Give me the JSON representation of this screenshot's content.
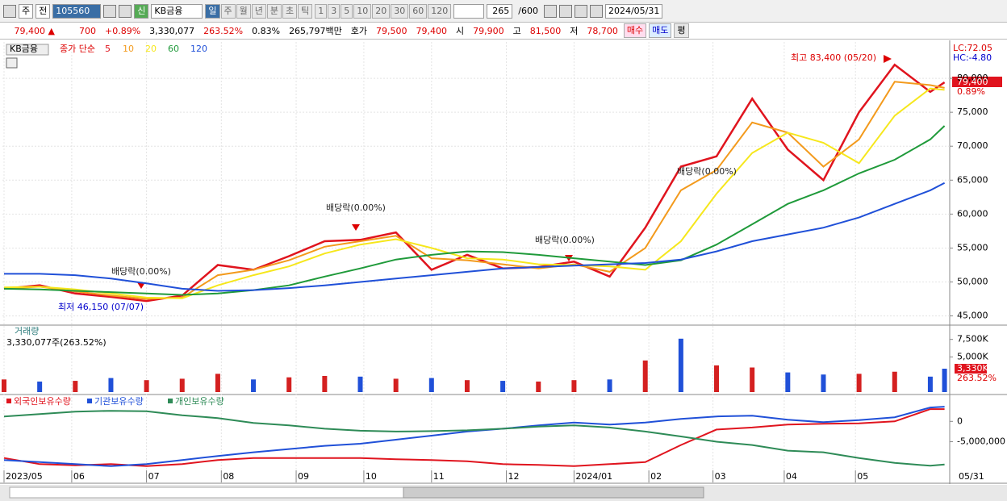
{
  "toolbar": {
    "market": "주",
    "prev": "전",
    "code": "105560",
    "badge": "신",
    "name": "KB금융",
    "periods": [
      "일",
      "주",
      "월",
      "년",
      "분",
      "초",
      "틱"
    ],
    "intervals": [
      "1",
      "3",
      "5",
      "10",
      "20",
      "30",
      "60",
      "120"
    ],
    "count": "265",
    "max": "/600",
    "date": "2024/05/31"
  },
  "quote": {
    "price": "79,400 ▲",
    "change": "700",
    "change_pct": "+0.89%",
    "volume": "3,330,077",
    "volume_ratio": "263.52%",
    "turnover": "0.83%",
    "amount": "265,797백만",
    "ask_label": "호가",
    "ask": "79,500",
    "bid": "79,400",
    "open_label": "시",
    "open": "79,900",
    "high_label": "고",
    "high": "81,500",
    "low_label": "저",
    "low": "78,700",
    "buy": "매수",
    "sell": "매도",
    "avg": "평"
  },
  "chart_data": [
    {
      "type": "line",
      "title": "KB금융",
      "subtitle": "종가 단순",
      "xlim": [
        0,
        265
      ],
      "ylim": [
        44000,
        85000
      ],
      "yticks": [
        {
          "value": 45000,
          "label": "45,000"
        },
        {
          "value": 50000,
          "label": "50,000"
        },
        {
          "value": 55000,
          "label": "55,000"
        },
        {
          "value": 60000,
          "label": "60,000"
        },
        {
          "value": 65000,
          "label": "65,000"
        },
        {
          "value": 70000,
          "label": "70,000"
        },
        {
          "value": 75000,
          "label": "75,000"
        },
        {
          "value": 80000,
          "label": "80,000"
        }
      ],
      "grid": true,
      "x": [
        0,
        10,
        20,
        30,
        40,
        50,
        60,
        70,
        80,
        90,
        100,
        110,
        120,
        130,
        140,
        150,
        160,
        170,
        180,
        190,
        200,
        210,
        220,
        230,
        240,
        250,
        260,
        264
      ],
      "series": [
        {
          "name": "5",
          "color": "#e0141e",
          "values": [
            49000,
            49500,
            48300,
            47800,
            47200,
            48000,
            52500,
            51800,
            53800,
            56000,
            56200,
            57300,
            51800,
            54000,
            52000,
            52200,
            53000,
            50800,
            58000,
            67000,
            68500,
            77000,
            69500,
            65000,
            75000,
            82000,
            78000,
            79400
          ]
        },
        {
          "name": "10",
          "color": "#f39a1c",
          "values": [
            49000,
            49300,
            48600,
            48000,
            47500,
            47700,
            51000,
            51800,
            53200,
            55200,
            56000,
            56800,
            53500,
            53200,
            52600,
            52000,
            52600,
            51500,
            55000,
            63500,
            66500,
            73500,
            72000,
            67000,
            71000,
            79500,
            79000,
            78600
          ]
        },
        {
          "name": "20",
          "color": "#f6e71c",
          "values": [
            49200,
            49300,
            48900,
            48300,
            47700,
            47600,
            49500,
            51000,
            52300,
            54200,
            55500,
            56300,
            55000,
            53500,
            53300,
            52600,
            52500,
            52300,
            51800,
            56000,
            63000,
            69000,
            72000,
            70500,
            67500,
            74500,
            78500,
            78300
          ]
        },
        {
          "name": "60",
          "color": "#1f9a3a",
          "values": [
            49000,
            48900,
            48700,
            48500,
            48300,
            48100,
            48300,
            48800,
            49500,
            50800,
            52000,
            53300,
            54000,
            54500,
            54400,
            54000,
            53500,
            53000,
            52500,
            53200,
            55500,
            58500,
            61500,
            63500,
            66000,
            68000,
            71000,
            73000
          ]
        },
        {
          "name": "120",
          "color": "#2050d8",
          "values": [
            51200,
            51200,
            51000,
            50500,
            49800,
            49000,
            48700,
            48800,
            49100,
            49500,
            50000,
            50500,
            51000,
            51500,
            52000,
            52200,
            52400,
            52600,
            52800,
            53300,
            54500,
            56000,
            57000,
            58000,
            59500,
            61500,
            63500,
            64600
          ]
        }
      ],
      "annotations": [
        "배당락(0.00%)",
        "배당락(0.00%)",
        "배당락(0.00%)",
        "배당락(0.00%)",
        "최저 46,150 (07/07)",
        "최고 83,400 (05/20)"
      ],
      "side_labels": [
        "LC:72.05",
        "HC:-4.80",
        "79,400",
        "0.89%"
      ]
    },
    {
      "type": "bar",
      "title": "거래량",
      "subtitle": "3,330,077주(263.52%)",
      "xlim": [
        0,
        265
      ],
      "ylim": [
        0,
        9300000
      ],
      "yticks": [
        {
          "value": 5000000,
          "label": "5,000K"
        },
        {
          "value": 7500000,
          "label": "7,500K"
        }
      ],
      "x": [
        0,
        10,
        20,
        30,
        40,
        50,
        60,
        70,
        80,
        90,
        100,
        110,
        120,
        130,
        140,
        150,
        160,
        170,
        180,
        190,
        200,
        210,
        220,
        230,
        240,
        250,
        260,
        264
      ],
      "values": [
        1800000,
        1500000,
        1600000,
        2000000,
        1700000,
        1900000,
        2600000,
        1800000,
        2100000,
        2300000,
        2200000,
        1900000,
        2000000,
        1700000,
        1600000,
        1500000,
        1700000,
        1800000,
        4500000,
        7600000,
        3800000,
        3500000,
        2800000,
        2500000,
        2600000,
        2900000,
        2200000,
        3330077
      ],
      "colors": [
        "#d42020",
        "#2050d8",
        "#d42020",
        "#2050d8",
        "#d42020",
        "#d42020",
        "#d42020",
        "#2050d8",
        "#d42020",
        "#d42020",
        "#2050d8",
        "#d42020",
        "#2050d8",
        "#d42020",
        "#2050d8",
        "#d42020",
        "#d42020",
        "#2050d8",
        "#d42020",
        "#2050d8",
        "#d42020",
        "#d42020",
        "#2050d8",
        "#2050d8",
        "#d42020",
        "#d42020",
        "#2050d8",
        "#2050d8"
      ],
      "side_labels": [
        "3,330K",
        "263.52%"
      ]
    },
    {
      "type": "line",
      "xlim": [
        0,
        265
      ],
      "ylim": [
        -15000000,
        6000000
      ],
      "yticks": [
        0,
        {
          "value": -5000000,
          "label": "-5,000,000"
        }
      ],
      "xticks": [
        {
          "value": 0,
          "label": "2023/05"
        },
        {
          "value": 19,
          "label": "06"
        },
        {
          "value": 40,
          "label": "07"
        },
        {
          "value": 61,
          "label": "08"
        },
        {
          "value": 82,
          "label": "09"
        },
        {
          "value": 101,
          "label": "10"
        },
        {
          "value": 120,
          "label": "11"
        },
        {
          "value": 141,
          "label": "12"
        },
        {
          "value": 160,
          "label": "2024/01"
        },
        {
          "value": 181,
          "label": "02"
        },
        {
          "value": 199,
          "label": "03"
        },
        {
          "value": 219,
          "label": "04"
        },
        {
          "value": 239,
          "label": "05"
        }
      ],
      "x_end_label": "05/31",
      "x": [
        0,
        10,
        20,
        30,
        40,
        50,
        60,
        70,
        80,
        90,
        100,
        110,
        120,
        130,
        140,
        150,
        160,
        170,
        180,
        190,
        200,
        210,
        220,
        230,
        240,
        250,
        260,
        264
      ],
      "series": [
        {
          "name": "외국인보유수량",
          "color": "#e0141e",
          "values": [
            -9000000,
            -10500000,
            -10800000,
            -10500000,
            -11000000,
            -10500000,
            -9500000,
            -9000000,
            -9000000,
            -9000000,
            -9000000,
            -9300000,
            -9500000,
            -9800000,
            -10500000,
            -10700000,
            -11000000,
            -10500000,
            -10000000,
            -5800000,
            -2000000,
            -1500000,
            -800000,
            -600000,
            -500000,
            0,
            3000000,
            3000000
          ]
        },
        {
          "name": "기관보유수량",
          "color": "#2050d8",
          "values": [
            -9500000,
            -10000000,
            -10500000,
            -11000000,
            -10500000,
            -9500000,
            -8500000,
            -7600000,
            -6800000,
            -6000000,
            -5500000,
            -4500000,
            -3500000,
            -2500000,
            -1800000,
            -1000000,
            -300000,
            -800000,
            -300000,
            600000,
            1200000,
            1400000,
            400000,
            -200000,
            300000,
            1000000,
            3400000,
            3600000
          ]
        },
        {
          "name": "개인보유수량",
          "color": "#2e8b57",
          "values": [
            1200000,
            1800000,
            2400000,
            2600000,
            2500000,
            1500000,
            800000,
            -400000,
            -1000000,
            -1800000,
            -2300000,
            -2500000,
            -2400000,
            -2200000,
            -1800000,
            -1300000,
            -1000000,
            -1500000,
            -2500000,
            -3700000,
            -5000000,
            -5800000,
            -7200000,
            -7600000,
            -9000000,
            -10200000,
            -10900000,
            -10600000
          ]
        }
      ]
    }
  ]
}
